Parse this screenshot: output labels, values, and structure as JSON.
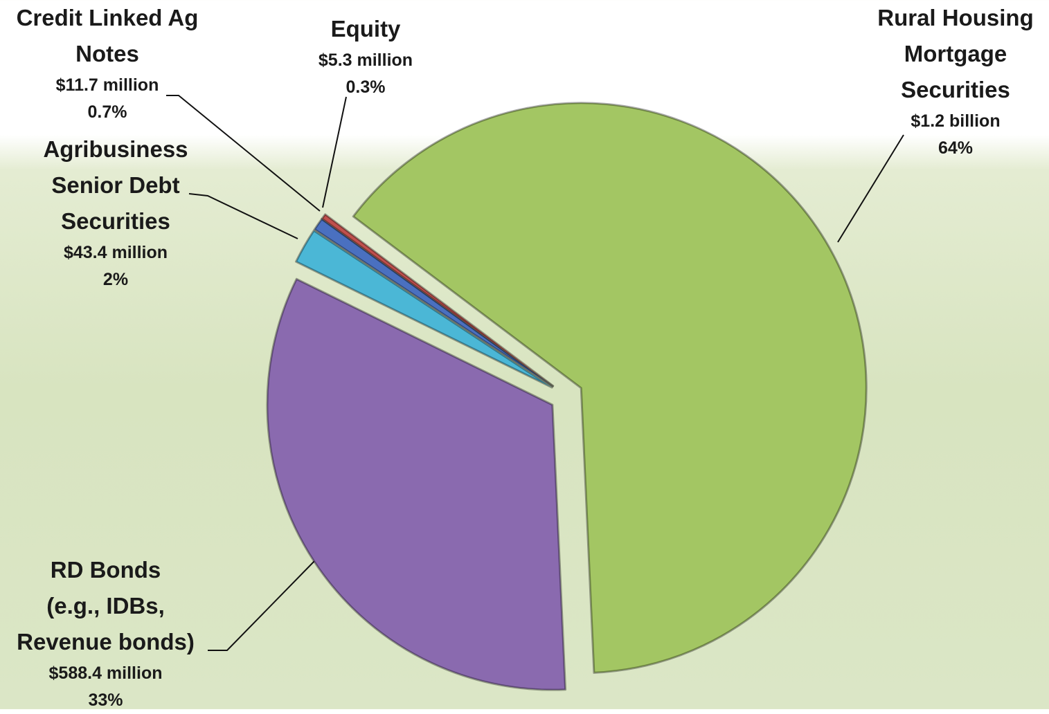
{
  "chart_data": {
    "type": "pie",
    "categories": [
      "Rural Housing Mortgage Securities",
      "RD Bonds (e.g., IDBs, Revenue bonds)",
      "Agribusiness Senior Debt Securities",
      "Credit Linked Ag Notes",
      "Equity"
    ],
    "values": [
      64,
      33,
      2,
      0.7,
      0.3
    ],
    "value_labels": [
      "64%",
      "33%",
      "2%",
      "0.7%",
      "0.3%"
    ],
    "amount_labels": [
      "$1.2 billion",
      "$588.4 million",
      "$43.4 million",
      "$11.7 million",
      "$5.3 million"
    ],
    "colors": [
      "#a3c663",
      "#8a6aaf",
      "#4bb7d6",
      "#4a70c0",
      "#c0504d"
    ]
  }
}
